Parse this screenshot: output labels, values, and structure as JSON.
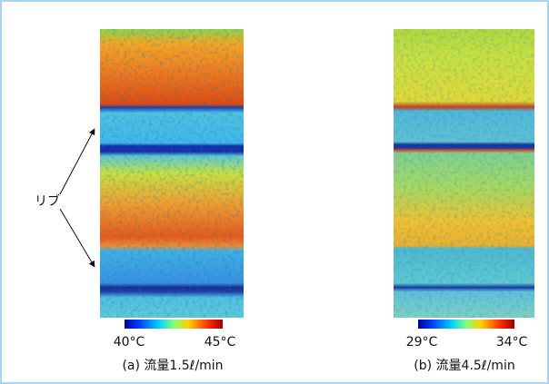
{
  "label": "リブ",
  "panels": [
    {
      "caption": "(a) 流量1.5ℓ/min",
      "scale_min": "40°C",
      "scale_max": "45°C"
    },
    {
      "caption": "(b) 流量4.5ℓ/min",
      "scale_min": "29°C",
      "scale_max": "34°C"
    }
  ]
}
